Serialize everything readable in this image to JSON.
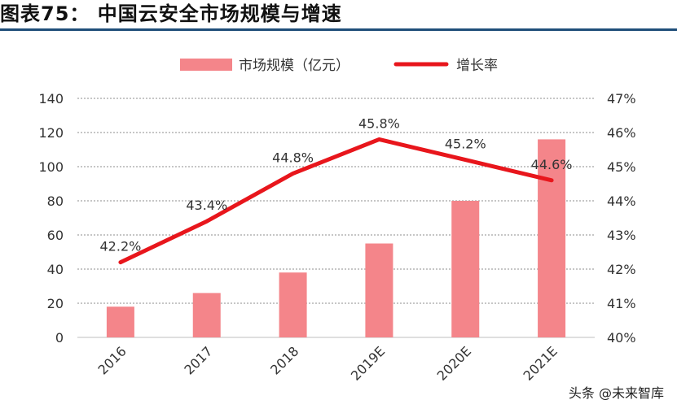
{
  "figure": {
    "title": "图表75：   中国云安全市场规模与增速",
    "watermark": "头条 @未来智库"
  },
  "colors": {
    "bar": "#f4858a",
    "line": "#e8161c",
    "title_rule": "#1f4e79",
    "grid": "#8c8c8c",
    "text": "#333333"
  },
  "chart_data": {
    "type": "bar",
    "categories": [
      "2016",
      "2017",
      "2018",
      "2019E",
      "2020E",
      "2021E"
    ],
    "series": [
      {
        "name": "市场规模（亿元）",
        "type": "bar",
        "axis": "left",
        "values": [
          18,
          26,
          38,
          55,
          80,
          116
        ]
      },
      {
        "name": "增长率",
        "type": "line",
        "axis": "right",
        "values": [
          42.2,
          43.4,
          44.8,
          45.8,
          45.2,
          44.6
        ],
        "labels": [
          "42.2%",
          "43.4%",
          "44.8%",
          "45.8%",
          "45.2%",
          "44.6%"
        ]
      }
    ],
    "y_left": {
      "min": 0,
      "max": 140,
      "ticks": [
        "0",
        "20",
        "40",
        "60",
        "80",
        "100",
        "120",
        "140"
      ]
    },
    "y_right": {
      "min": 40,
      "max": 47,
      "ticks": [
        "40%",
        "41%",
        "42%",
        "43%",
        "44%",
        "45%",
        "46%",
        "47%"
      ]
    },
    "grid": true,
    "legend_position": "top-center"
  }
}
